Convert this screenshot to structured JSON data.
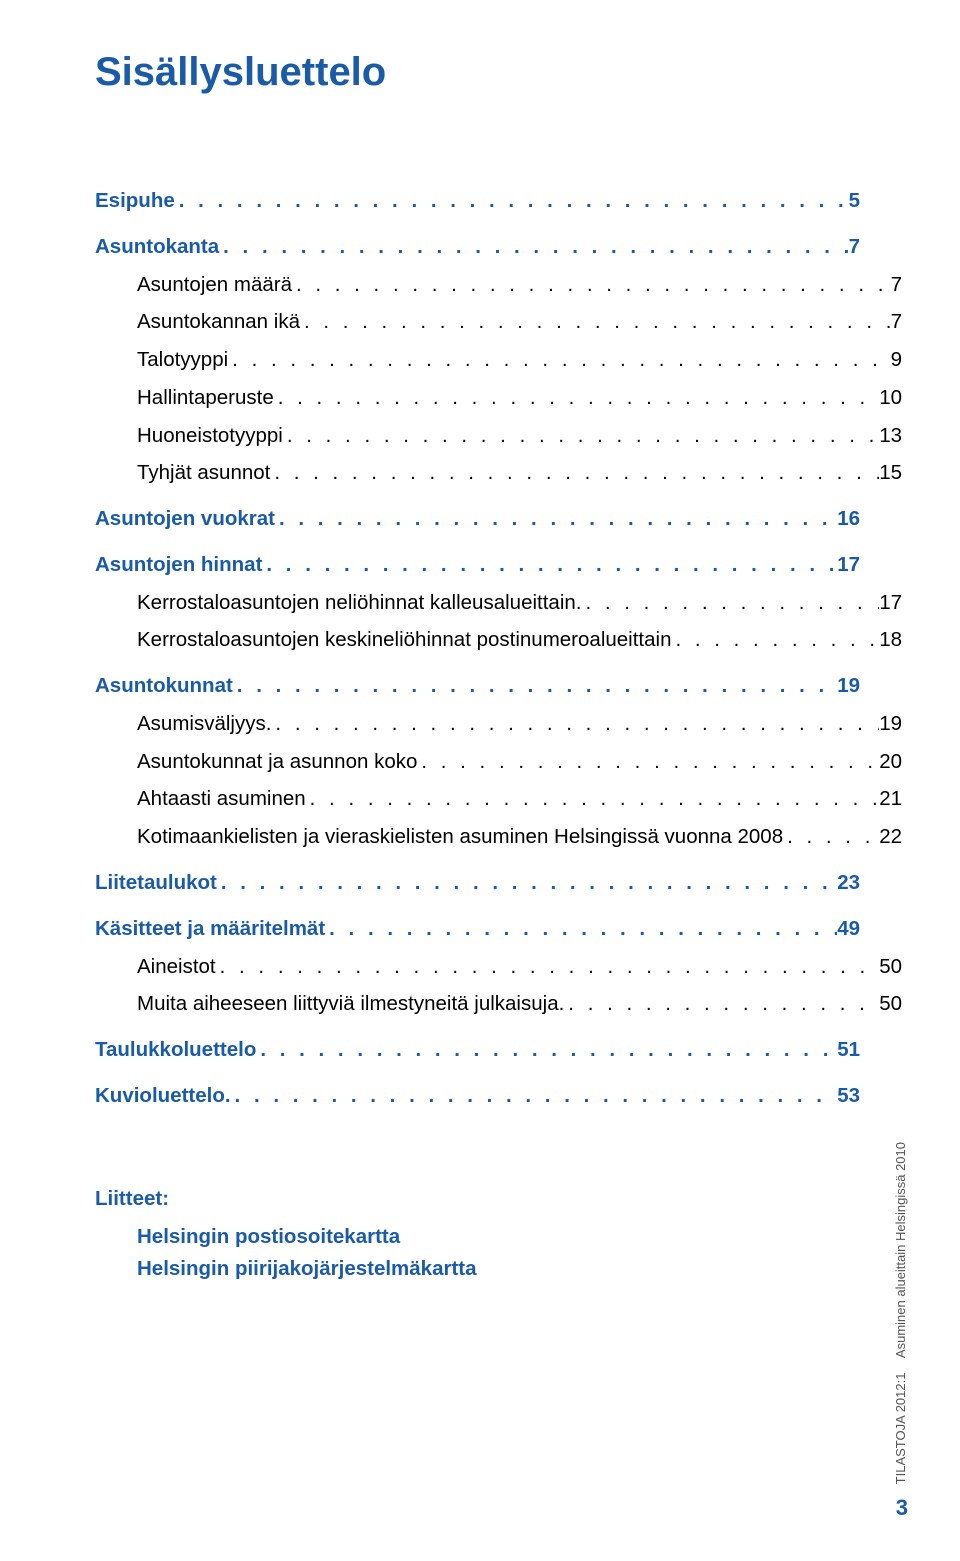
{
  "title": "Sisällysluettelo",
  "colors": {
    "accent": "#1a5ba8",
    "body": "#000000",
    "background": "#ffffff",
    "footer_text": "#555555"
  },
  "typography": {
    "title_fontsize": 40,
    "line_fontsize": 20.5,
    "footer_vert_fontsize": 13,
    "footer_pagenum_fontsize": 22
  },
  "toc": [
    {
      "label": "Esipuhe",
      "page": "5",
      "level": 1
    },
    {
      "label": "Asuntokanta",
      "page": "7",
      "level": 1
    },
    {
      "label": "Asuntojen määrä",
      "page": "7",
      "level": 2
    },
    {
      "label": "Asuntokannan ikä",
      "page": "7",
      "level": 2
    },
    {
      "label": "Talotyyppi",
      "page": "9",
      "level": 2
    },
    {
      "label": "Hallintaperuste",
      "page": "10",
      "level": 2
    },
    {
      "label": "Huoneistotyyppi",
      "page": "13",
      "level": 2
    },
    {
      "label": "Tyhjät asunnot",
      "page": "15",
      "level": 2
    },
    {
      "label": "Asuntojen vuokrat",
      "page": "16",
      "level": 1
    },
    {
      "label": "Asuntojen hinnat",
      "page": "17",
      "level": 1
    },
    {
      "label": "Kerrostaloasuntojen neliöhinnat kalleusalueittain.",
      "page": "17",
      "level": 2
    },
    {
      "label": "Kerrostaloasuntojen keskineliöhinnat postinumeroalueittain",
      "page": "18",
      "level": 2
    },
    {
      "label": "Asuntokunnat",
      "page": "19",
      "level": 1
    },
    {
      "label": "Asumisväljyys.",
      "page": "19",
      "level": 2
    },
    {
      "label": "Asuntokunnat ja asunnon koko",
      "page": "20",
      "level": 2
    },
    {
      "label": "Ahtaasti asuminen",
      "page": "21",
      "level": 2
    },
    {
      "label": "Kotimaankielisten ja vieraskielisten asuminen Helsingissä vuonna 2008",
      "page": "22",
      "level": 2
    },
    {
      "label": "Liitetaulukot",
      "page": "23",
      "level": 1
    },
    {
      "label": "Käsitteet ja määritelmät",
      "page": "49",
      "level": 1
    },
    {
      "label": "Aineistot",
      "page": "50",
      "level": 2
    },
    {
      "label": "Muita aiheeseen liittyviä ilmestyneitä julkaisuja.",
      "page": "50",
      "level": 2
    },
    {
      "label": "Taulukkoluettelo",
      "page": "51",
      "level": 1
    },
    {
      "label": "Kuvioluettelo.",
      "page": "53",
      "level": 1
    }
  ],
  "appendix": {
    "heading": "Liitteet:",
    "items": [
      "Helsingin postiosoitekartta",
      "Helsingin piirijakojärjestelmäkartta"
    ]
  },
  "footer": {
    "series": "TILASTOJA 2012:1",
    "doc_title": "Asuminen alueittain Helsingissä 2010",
    "page_number": "3"
  },
  "leader_char": ". . . . . . . . . . . . . . . . . . . . . . . . . . . . . . . . . . . . . . . . . . . . . . . . . . . . . . . . . . . . . . . . . . . . . . . . . . . . . . . ."
}
